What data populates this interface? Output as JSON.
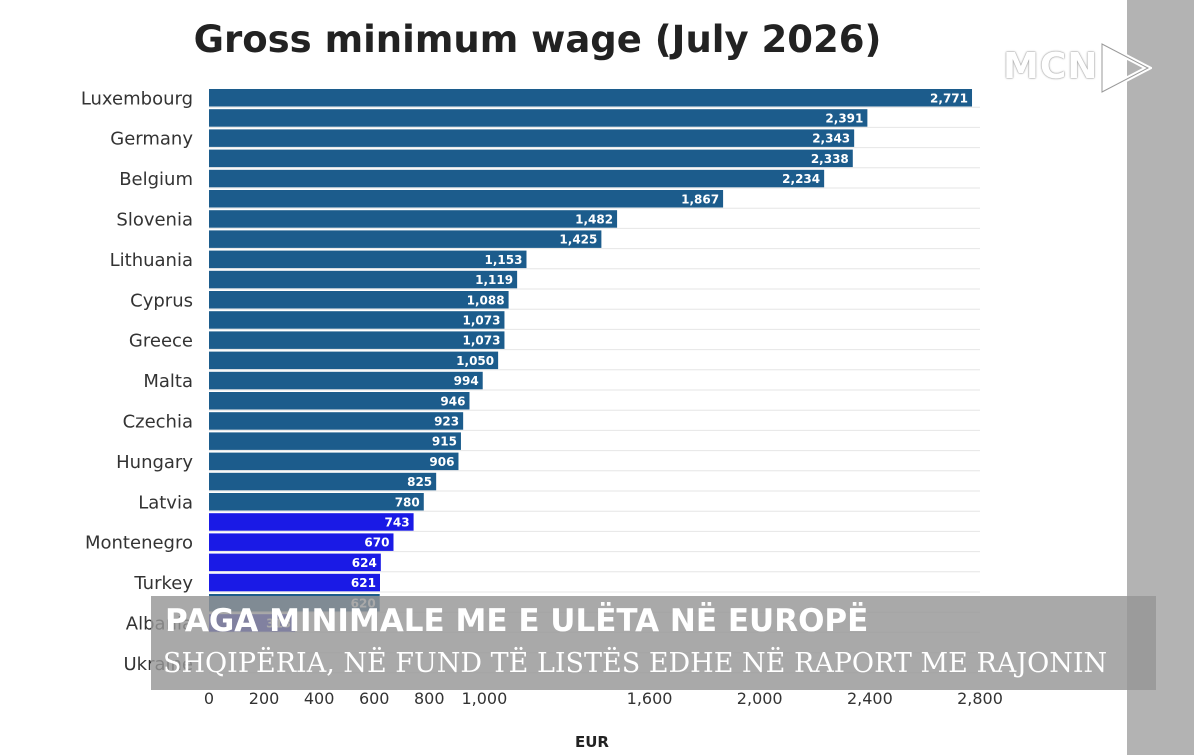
{
  "chart_data": {
    "type": "bar",
    "orientation": "horizontal",
    "title": "Gross minimum wage (July 2026)",
    "xlabel": "EUR",
    "xlim": [
      0,
      2800
    ],
    "x_ticks": [
      "0",
      "200",
      "400",
      "600",
      "800",
      "1,000",
      "1,600",
      "2,000",
      "2,400",
      "2,800"
    ],
    "x_tick_values": [
      0,
      200,
      400,
      600,
      800,
      1000,
      1600,
      2000,
      2400,
      2800
    ],
    "categories": [
      "Luxembourg",
      "",
      "Germany",
      "",
      "Belgium",
      "",
      "Slovenia",
      "",
      "Lithuania",
      "",
      "Cyprus",
      "",
      "Greece",
      "",
      "Malta",
      "",
      "Czechia",
      "",
      "Hungary",
      "",
      "Latvia",
      "",
      "Montenegro",
      "",
      "Turkey",
      "",
      "Albania",
      "",
      "Ukraine"
    ],
    "values": [
      2771,
      2391,
      2343,
      2338,
      2234,
      1867,
      1482,
      1425,
      1153,
      1119,
      1088,
      1073,
      1073,
      1050,
      994,
      946,
      923,
      915,
      906,
      825,
      780,
      743,
      670,
      624,
      621,
      620,
      313,
      0,
      0
    ],
    "value_labels": [
      "2,771",
      "2,391",
      "2,343",
      "2,338",
      "2,234",
      "1,867",
      "1,482",
      "1,425",
      "1,153",
      "1,119",
      "1,088",
      "1,073",
      "1,073",
      "1,050",
      "994",
      "946",
      "923",
      "915",
      "906",
      "825",
      "780",
      "743",
      "670",
      "624",
      "621",
      "620",
      "313",
      "",
      ""
    ],
    "bar_colors": [
      "#1c5c8c",
      "#1c5c8c",
      "#1c5c8c",
      "#1c5c8c",
      "#1c5c8c",
      "#1c5c8c",
      "#1c5c8c",
      "#1c5c8c",
      "#1c5c8c",
      "#1c5c8c",
      "#1c5c8c",
      "#1c5c8c",
      "#1c5c8c",
      "#1c5c8c",
      "#1c5c8c",
      "#1c5c8c",
      "#1c5c8c",
      "#1c5c8c",
      "#1c5c8c",
      "#1c5c8c",
      "#1c5c8c",
      "#1a1ae6",
      "#1a1ae6",
      "#1a1ae6",
      "#1a1ae6",
      "#1c5c8c",
      "#2222cc",
      "#1a1ae6",
      "#1a1ae6"
    ],
    "grid": true
  },
  "logo": {
    "text": "MCN",
    "color": "#ffffff"
  },
  "banner": {
    "title": "PAGA MINIMALE ME E ULËTA NË EUROPË",
    "subtitle": "SHQIPËRIA, NË FUND TË LISTËS EDHE NË RAPORT ME RAJONIN"
  },
  "colors": {
    "eu_bar": "#1c5c8c",
    "non_eu_bar": "#1a1ae6",
    "side_strip": "#b3b3b3"
  }
}
